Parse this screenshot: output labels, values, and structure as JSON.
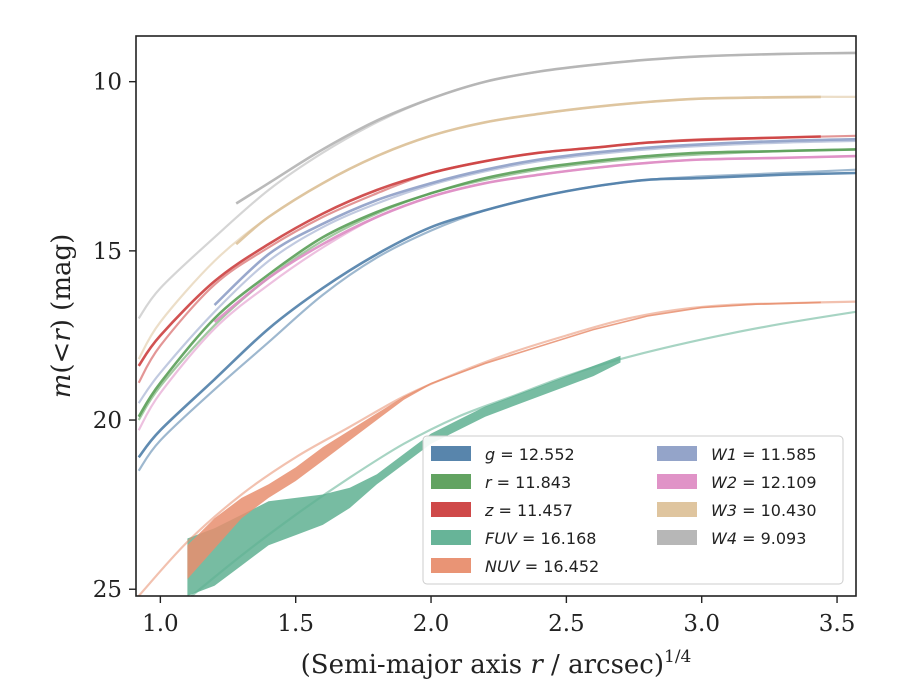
{
  "chart_data": {
    "type": "line",
    "xlabel": "(Semi-major axis r / arcsec)^1/4",
    "xlabel_parts": {
      "pre": "(Semi-major axis ",
      "var": "r",
      "post": " / arcsec)",
      "sup": "1/4"
    },
    "ylabel": "m(<r) (mag)",
    "ylabel_parts": {
      "var": "m",
      "lt": "(<",
      "r": "r",
      "close": ")",
      "unit": " (mag)"
    },
    "xlim": [
      0.91,
      3.57
    ],
    "ylim": [
      25.2,
      8.65
    ],
    "y_inverted": true,
    "xticks": [
      1.0,
      1.5,
      2.0,
      2.5,
      3.0,
      3.5
    ],
    "xtick_labels": [
      "1.0",
      "1.5",
      "2.0",
      "2.5",
      "3.0",
      "3.5"
    ],
    "yticks": [
      10,
      15,
      20,
      25
    ],
    "ytick_labels": [
      "10",
      "15",
      "20",
      "25"
    ],
    "grid": false,
    "legend": {
      "placement": "lower-right",
      "columns": 2
    },
    "series": [
      {
        "name": "g",
        "label_var": "g",
        "label_value": "= 12.552",
        "color": "#4f7ea8",
        "fit_x": [
          0.92,
          1.0,
          1.2,
          1.4,
          1.6,
          1.8,
          2.0,
          2.2,
          2.4,
          2.6,
          2.8,
          3.0,
          3.3,
          3.57
        ],
        "fit_y": [
          21.5,
          20.6,
          19.1,
          17.7,
          16.3,
          15.2,
          14.4,
          13.8,
          13.4,
          13.1,
          12.9,
          12.8,
          12.7,
          12.6
        ],
        "obs_x": [
          0.92,
          1.0,
          1.2,
          1.4,
          1.6,
          1.8,
          2.0,
          2.2,
          2.4,
          2.6,
          2.8,
          3.0,
          3.3,
          3.57
        ],
        "obs_y": [
          21.1,
          20.3,
          18.8,
          17.3,
          16.1,
          15.1,
          14.3,
          13.8,
          13.4,
          13.1,
          12.9,
          12.85,
          12.75,
          12.7
        ]
      },
      {
        "name": "r",
        "label_var": "r",
        "label_value": "= 11.843",
        "color": "#5a9e58",
        "fit_x": [
          0.92,
          1.0,
          1.2,
          1.4,
          1.6,
          1.8,
          2.0,
          2.2,
          2.4,
          2.6,
          2.8,
          3.0,
          3.3,
          3.57
        ],
        "fit_y": [
          20.0,
          19.0,
          17.2,
          15.8,
          14.7,
          13.9,
          13.3,
          12.9,
          12.6,
          12.4,
          12.25,
          12.15,
          12.05,
          12.0
        ],
        "obs_x": [
          0.92,
          1.0,
          1.2,
          1.4,
          1.6,
          1.8,
          2.0,
          2.2,
          2.4,
          2.6,
          2.8,
          3.0,
          3.3,
          3.57
        ],
        "obs_y": [
          19.9,
          18.9,
          17.0,
          15.7,
          14.6,
          13.85,
          13.3,
          12.85,
          12.55,
          12.35,
          12.2,
          12.1,
          12.05,
          12.0
        ]
      },
      {
        "name": "z",
        "label_var": "z",
        "label_value": "= 11.457",
        "color": "#cc3f3f",
        "fit_x": [
          0.92,
          1.0,
          1.2,
          1.4,
          1.6,
          1.8,
          2.0,
          2.2,
          2.4,
          2.6,
          2.8,
          3.0,
          3.3,
          3.57
        ],
        "fit_y": [
          18.9,
          17.8,
          16.0,
          14.9,
          14.0,
          13.3,
          12.7,
          12.35,
          12.1,
          11.95,
          11.8,
          11.7,
          11.65,
          11.6
        ],
        "obs_x": [
          0.92,
          1.0,
          1.2,
          1.4,
          1.6,
          1.8,
          2.0,
          2.2,
          2.4,
          2.6,
          2.8,
          3.0,
          3.3,
          3.44
        ],
        "obs_y": [
          18.4,
          17.5,
          15.9,
          14.8,
          13.9,
          13.2,
          12.7,
          12.35,
          12.1,
          11.95,
          11.8,
          11.72,
          11.65,
          11.62
        ]
      },
      {
        "name": "FUV",
        "label_var": "FUV",
        "label_value": "= 16.168",
        "color": "#5fb092",
        "fit_x": [
          1.1,
          1.3,
          1.5,
          1.7,
          1.9,
          2.1,
          2.3,
          2.5,
          2.7,
          2.9,
          3.1,
          3.3,
          3.57
        ],
        "fit_y": [
          25.3,
          24.0,
          22.8,
          21.7,
          20.7,
          19.9,
          19.3,
          18.7,
          18.2,
          17.8,
          17.45,
          17.15,
          16.8
        ],
        "band_x": [
          1.1,
          1.2,
          1.3,
          1.4,
          1.5,
          1.6,
          1.7,
          1.8,
          1.9,
          2.0,
          2.1,
          2.2,
          2.3,
          2.4,
          2.5,
          2.6,
          2.7
        ],
        "band_upper": [
          23.5,
          23.2,
          22.8,
          22.4,
          22.3,
          22.2,
          22.0,
          21.6,
          21.0,
          20.4,
          20.0,
          19.6,
          19.3,
          19.0,
          18.7,
          18.4,
          18.1
        ],
        "band_lower": [
          25.2,
          24.9,
          24.3,
          23.7,
          23.4,
          23.1,
          22.6,
          21.9,
          21.3,
          20.7,
          20.3,
          19.9,
          19.6,
          19.3,
          19.0,
          18.7,
          18.3
        ]
      },
      {
        "name": "NUV",
        "label_var": "NUV",
        "label_value": "= 16.452",
        "color": "#e88e6e",
        "fit_x": [
          0.92,
          1.1,
          1.3,
          1.5,
          1.7,
          1.9,
          2.1,
          2.3,
          2.5,
          2.7,
          2.9,
          3.1,
          3.3,
          3.57
        ],
        "fit_y": [
          25.2,
          23.6,
          22.2,
          21.1,
          20.2,
          19.3,
          18.6,
          18.0,
          17.5,
          17.05,
          16.75,
          16.6,
          16.55,
          16.5
        ],
        "band_x": [
          1.1,
          1.2,
          1.3,
          1.4,
          1.5,
          1.6,
          1.7,
          1.8,
          1.9,
          2.0,
          2.2,
          2.4,
          2.6,
          2.8,
          3.0,
          3.2,
          3.44
        ],
        "band_upper": [
          23.7,
          22.9,
          22.3,
          21.9,
          21.4,
          20.8,
          20.3,
          19.8,
          19.3,
          18.9,
          18.3,
          17.8,
          17.3,
          16.9,
          16.65,
          16.55,
          16.5
        ],
        "band_lower": [
          24.7,
          23.8,
          22.9,
          22.3,
          21.8,
          21.2,
          20.6,
          20.0,
          19.4,
          18.95,
          18.35,
          17.85,
          17.35,
          16.95,
          16.7,
          16.6,
          16.55
        ]
      },
      {
        "name": "W1",
        "label_var": "W1",
        "label_value": "= 11.585",
        "color": "#8e9fc6",
        "fit_x": [
          0.92,
          1.0,
          1.2,
          1.4,
          1.6,
          1.8,
          2.0,
          2.2,
          2.4,
          2.6,
          2.8,
          3.0,
          3.3,
          3.57
        ],
        "fit_y": [
          19.5,
          18.6,
          16.8,
          15.3,
          14.3,
          13.6,
          13.05,
          12.65,
          12.35,
          12.15,
          12.0,
          11.9,
          11.8,
          11.75
        ],
        "obs_x": [
          1.2,
          1.4,
          1.6,
          1.8,
          2.0,
          2.2,
          2.4,
          2.6,
          2.8,
          3.0,
          3.3,
          3.57
        ],
        "obs_y": [
          16.6,
          15.1,
          14.2,
          13.5,
          13.0,
          12.6,
          12.3,
          12.1,
          11.95,
          11.85,
          11.75,
          11.7
        ]
      },
      {
        "name": "W2",
        "label_var": "W2",
        "label_value": "= 12.109",
        "color": "#de8dc4",
        "fit_x": [
          0.92,
          1.0,
          1.2,
          1.4,
          1.6,
          1.8,
          2.0,
          2.2,
          2.4,
          2.6,
          2.8,
          3.0,
          3.3,
          3.57
        ],
        "fit_y": [
          20.3,
          19.2,
          17.3,
          16.0,
          14.9,
          14.0,
          13.4,
          13.0,
          12.75,
          12.55,
          12.4,
          12.3,
          12.25,
          12.2
        ],
        "obs_x": [
          1.2,
          1.4,
          1.6,
          1.8,
          2.0,
          2.2,
          2.4,
          2.6,
          2.8,
          3.0,
          3.3,
          3.57
        ],
        "obs_y": [
          17.1,
          15.8,
          14.8,
          14.0,
          13.4,
          13.0,
          12.75,
          12.55,
          12.4,
          12.3,
          12.25,
          12.2
        ]
      },
      {
        "name": "W3",
        "label_var": "W3",
        "label_value": "= 10.430",
        "color": "#ddc29a",
        "fit_x": [
          0.92,
          1.0,
          1.2,
          1.4,
          1.6,
          1.8,
          2.0,
          2.2,
          2.4,
          2.6,
          2.8,
          3.0,
          3.3,
          3.57
        ],
        "fit_y": [
          18.2,
          17.1,
          15.3,
          14.0,
          13.0,
          12.2,
          11.6,
          11.2,
          10.95,
          10.75,
          10.6,
          10.5,
          10.45,
          10.45
        ],
        "obs_x": [
          1.28,
          1.4,
          1.6,
          1.8,
          2.0,
          2.2,
          2.4,
          2.6,
          2.8,
          3.0,
          3.2,
          3.44
        ],
        "obs_y": [
          14.8,
          14.0,
          13.0,
          12.2,
          11.6,
          11.2,
          10.95,
          10.75,
          10.6,
          10.5,
          10.47,
          10.45
        ]
      },
      {
        "name": "W4",
        "label_var": "W4",
        "label_value": "= 9.093",
        "color": "#b3b3b3",
        "fit_x": [
          0.92,
          1.0,
          1.2,
          1.4,
          1.6,
          1.8,
          2.0,
          2.2,
          2.4,
          2.6,
          2.8,
          3.0,
          3.3,
          3.57
        ],
        "fit_y": [
          17.0,
          16.1,
          14.6,
          13.2,
          12.1,
          11.2,
          10.5,
          10.0,
          9.7,
          9.5,
          9.35,
          9.25,
          9.18,
          9.15
        ],
        "obs_x": [
          1.28,
          1.4,
          1.6,
          1.8,
          2.0,
          2.2,
          2.4,
          2.6,
          2.8,
          3.0,
          3.3,
          3.57
        ],
        "obs_y": [
          13.6,
          13.0,
          12.0,
          11.15,
          10.5,
          10.0,
          9.7,
          9.5,
          9.35,
          9.25,
          9.18,
          9.15
        ]
      }
    ],
    "legend_order": [
      [
        "g",
        "r",
        "z",
        "FUV",
        "NUV"
      ],
      [
        "W1",
        "W2",
        "W3",
        "W4"
      ]
    ]
  }
}
